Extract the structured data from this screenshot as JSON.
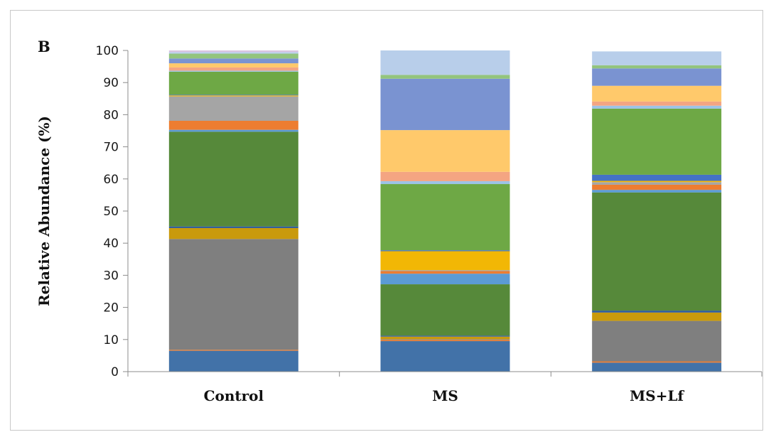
{
  "panel_label": "B",
  "chart_data": {
    "type": "bar",
    "stacked": true,
    "title": "",
    "xlabel": "",
    "ylabel": "Relative Abundance  (%)",
    "ylim": [
      0,
      100
    ],
    "yticks": [
      0,
      10,
      20,
      30,
      40,
      50,
      60,
      70,
      80,
      90,
      100
    ],
    "grid": false,
    "legend": "none",
    "categories": [
      "Control",
      "MS",
      "MS+Lf"
    ],
    "series": [
      {
        "color": "#4272A8",
        "values": [
          6.5,
          9.5,
          2.8
        ]
      },
      {
        "color": "#E87A2F",
        "values": [
          0.3,
          0.4,
          0.4
        ]
      },
      {
        "color": "#7F7F7F",
        "values": [
          34.5,
          0.2,
          12.6
        ]
      },
      {
        "color": "#C99A0C",
        "values": [
          3.4,
          0.8,
          2.6
        ]
      },
      {
        "color": "#2E5B9A",
        "values": [
          0.5,
          0.3,
          0.6
        ]
      },
      {
        "color": "#56893A",
        "values": [
          29.5,
          16.0,
          36.8
        ]
      },
      {
        "color": "#5B9BD5",
        "values": [
          0.6,
          3.3,
          0.8
        ]
      },
      {
        "color": "#ED7D31",
        "values": [
          2.8,
          0.8,
          1.6
        ]
      },
      {
        "color": "#A5A5A5",
        "values": [
          7.6,
          0.3,
          0.8
        ]
      },
      {
        "color": "#F2B705",
        "values": [
          0.3,
          5.9,
          0.4
        ]
      },
      {
        "color": "#4472C4",
        "values": [
          0.2,
          0.3,
          1.9
        ]
      },
      {
        "color": "#6EA845",
        "values": [
          7.2,
          20.6,
          20.6
        ]
      },
      {
        "color": "#9DC3E6",
        "values": [
          0.3,
          0.9,
          0.9
        ]
      },
      {
        "color": "#F4A582",
        "values": [
          1.0,
          2.9,
          1.3
        ]
      },
      {
        "color": "#FFC96B",
        "values": [
          1.3,
          13.0,
          4.9
        ]
      },
      {
        "color": "#7A93D1",
        "values": [
          1.5,
          16.0,
          5.4
        ]
      },
      {
        "color": "#93C47D",
        "values": [
          1.5,
          1.2,
          1.0
        ]
      },
      {
        "color": "#B8CEEA",
        "values": [
          0.5,
          7.6,
          4.3
        ]
      },
      {
        "color": "#D9C3E0",
        "values": [
          0.5,
          0.0,
          0.0
        ]
      }
    ]
  }
}
